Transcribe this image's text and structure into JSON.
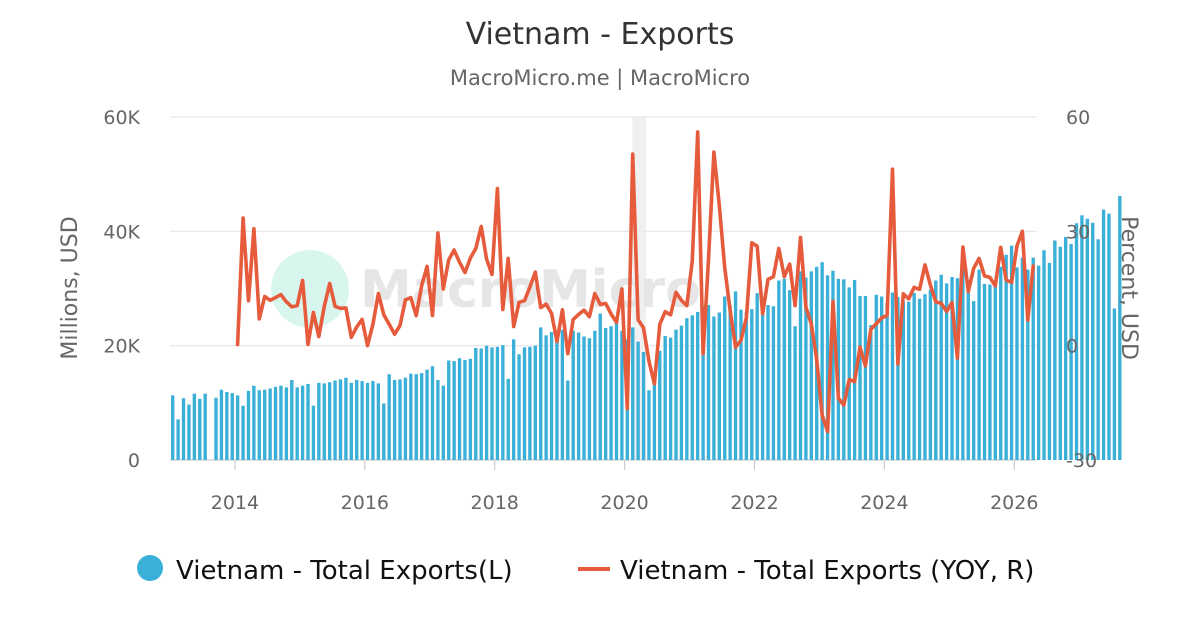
{
  "chart_data": {
    "type": "bar+line",
    "title": "Vietnam - Exports",
    "subtitle": "MacroMicro.me | MacroMicro",
    "watermark": "MacroMicro",
    "y_left": {
      "label": "Millions, USD",
      "range": [
        0,
        60000
      ],
      "ticks": [
        0,
        20000,
        40000,
        60000
      ],
      "tick_labels": [
        "0",
        "20K",
        "40K",
        "60K"
      ]
    },
    "y_right": {
      "label": "Percent, USD",
      "range": [
        -30,
        60
      ],
      "ticks": [
        -30,
        0,
        30,
        60
      ],
      "tick_labels": [
        "-30",
        "0",
        "30",
        "60"
      ]
    },
    "x": {
      "range": [
        2013.0,
        2026.35
      ],
      "ticks": [
        2014,
        2016,
        2018,
        2020,
        2022,
        2024,
        2026
      ],
      "tick_labels": [
        "2014",
        "2016",
        "2018",
        "2020",
        "2022",
        "2024",
        "2026"
      ]
    },
    "grid": true,
    "legend_position": "bottom",
    "highlight_band": [
      2020.12,
      2020.33
    ],
    "series": [
      {
        "name": "Vietnam - Total Exports(L)",
        "type": "bar",
        "axis": "left",
        "color": "#3aafd8",
        "start": "2013-01",
        "values": [
          11300,
          7100,
          10800,
          9700,
          11600,
          10700,
          11600,
          null,
          10900,
          12300,
          11900,
          11700,
          11300,
          9500,
          12100,
          13000,
          12200,
          12300,
          12500,
          12800,
          13000,
          12700,
          14000,
          12700,
          13000,
          13300,
          9500,
          13500,
          13400,
          13600,
          13900,
          14100,
          14400,
          13500,
          14000,
          13800,
          13500,
          13800,
          13400,
          9900,
          15000,
          14000,
          14100,
          14400,
          15100,
          15000,
          15200,
          15800,
          16400,
          14000,
          13000,
          17400,
          17300,
          17800,
          17500,
          17700,
          19600,
          19500,
          20000,
          19700,
          19800,
          20100,
          14200,
          21100,
          18500,
          19700,
          19800,
          20000,
          23200,
          21800,
          22400,
          21200,
          22800,
          13900,
          22600,
          22300,
          21600,
          21300,
          22600,
          25600,
          23100,
          23400,
          24000,
          22600,
          21100,
          23200,
          20700,
          18900,
          12200,
          15300,
          19100,
          21700,
          21400,
          22800,
          23500,
          24800,
          25300,
          25900,
          27000,
          27100,
          25100,
          25800,
          28600,
          27000,
          29500,
          26300,
          25900,
          26400,
          29200,
          26900,
          27100,
          26900,
          31400,
          31700,
          29700,
          23400,
          33000,
          31900,
          33000,
          33800,
          34600,
          32300,
          33100,
          31700,
          31600,
          30200,
          31500,
          28700,
          28700,
          23600,
          28900,
          28600,
          27500,
          29300,
          28500,
          27700,
          27700,
          29200,
          28200,
          29000,
          29800,
          31400,
          32400,
          30900,
          32000,
          31800,
          34600,
          31500,
          27800,
          33300,
          30800,
          30700,
          31400,
          33800,
          35900,
          37500,
          33700,
          35400,
          33300,
          35400,
          34000,
          36700,
          34500,
          38400,
          37300,
          39000,
          37800,
          41400,
          42800,
          42200,
          41500,
          38600,
          43800,
          43100,
          26500,
          46200
        ]
      },
      {
        "name": "Vietnam - Total Exports (YOY, R)",
        "type": "line",
        "axis": "right",
        "color": "#e55b3c",
        "start": "2014-01",
        "values": [
          0.3,
          33.5,
          11.8,
          30.7,
          7,
          12.9,
          11.9,
          12.6,
          13.4,
          11.5,
          10.2,
          10.5,
          17.1,
          0.3,
          8.7,
          2.4,
          10.2,
          16.3,
          10.3,
          9.8,
          9.9,
          2.2,
          4.9,
          6.9,
          0,
          5.6,
          13.7,
          8.1,
          5.6,
          3,
          5.3,
          12,
          12.6,
          7.9,
          15.8,
          20.8,
          7.9,
          29.6,
          14.9,
          22.5,
          25.1,
          21.9,
          19.2,
          23,
          25.5,
          31.3,
          22.7,
          18.7,
          41.2,
          9.5,
          22.9,
          5,
          11.4,
          11.8,
          15.4,
          19.3,
          10,
          10.9,
          8.5,
          1.1,
          9.4,
          -2.1,
          6.9,
          8.2,
          9.3,
          7.6,
          13.7,
          10.8,
          11.1,
          8.3,
          6.1,
          14.9,
          -16.5,
          50.3,
          6.8,
          4.7,
          -4.1,
          -10,
          5.6,
          8.9,
          8.1,
          14,
          11.9,
          10.5,
          22.3,
          56.1,
          -2.1,
          22.6,
          50.8,
          36.8,
          20.5,
          9.3,
          -0.4,
          1.4,
          7.4,
          27,
          26.1,
          8.4,
          17.4,
          18.1,
          25.5,
          18.1,
          21.4,
          10.5,
          28.4,
          10.1,
          5.7,
          -3.6,
          -18.2,
          -22.5,
          11.6,
          -13.8,
          -15.6,
          -8.9,
          -9.4,
          -0.4,
          -5.3,
          4.3,
          5.8,
          7.3,
          7.9,
          46.3,
          -4.8,
          13.6,
          12.3,
          15.3,
          14.8,
          21.2,
          15.9,
          11.5,
          11.1,
          9,
          11.3,
          -3.3,
          25.9,
          14.2,
          20.3,
          22.9,
          18.3,
          17.9,
          15.7,
          25.8,
          17.2,
          16.6,
          26.2,
          30,
          6.7,
          20.9
        ]
      }
    ]
  }
}
